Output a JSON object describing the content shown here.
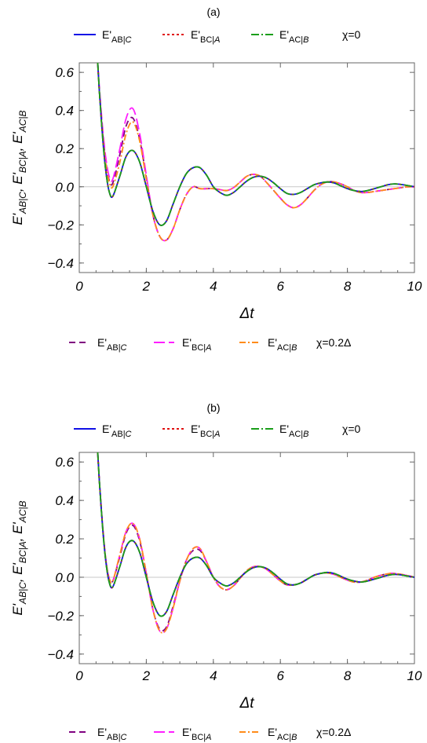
{
  "chart_data": [
    {
      "type": "line",
      "title": "(a)",
      "xlabel": "Δt",
      "ylabel": "E'AB|C,  E'BC|A,  E'AC|B",
      "xlim": [
        0,
        10
      ],
      "ylim": [
        -0.45,
        0.65
      ],
      "xticks": [
        "0",
        "2",
        "4",
        "6",
        "8",
        "10"
      ],
      "yticks": [
        "0.6",
        "0.4",
        "0.2",
        "0.0",
        "−0.2",
        "−0.4"
      ],
      "ytick_values": [
        0.6,
        0.4,
        0.2,
        0.0,
        -0.2,
        -0.4
      ],
      "grid": false,
      "zero_line": true,
      "legend_top": {
        "label_a": "E'AB|C",
        "label_b": "E'BC|A",
        "label_c": "E'AC|B",
        "suffix": "χ=0"
      },
      "legend_bottom": {
        "label_a": "E'AB|C",
        "label_b": "E'BC|A",
        "label_c": "E'AC|B",
        "suffix": "χ=0.2Δ"
      },
      "x": [
        0.55,
        0.6,
        0.7,
        0.8,
        0.9,
        1.0,
        1.2,
        1.4,
        1.6,
        1.8,
        2.0,
        2.2,
        2.4,
        2.6,
        2.8,
        3.0,
        3.2,
        3.4,
        3.6,
        3.8,
        4.0,
        4.2,
        4.4,
        4.6,
        4.8,
        5.0,
        5.2,
        5.4,
        5.6,
        5.8,
        6.0,
        6.2,
        6.4,
        6.6,
        6.8,
        7.0,
        7.2,
        7.4,
        7.6,
        7.8,
        8.0,
        8.2,
        8.4,
        8.6,
        8.8,
        9.0,
        9.2,
        9.4,
        9.6,
        9.8,
        10.0
      ],
      "series": [
        {
          "name": "E'AB|C χ=0",
          "color": "#1010e6",
          "dash": "solid",
          "values": [
            0.65,
            0.5,
            0.25,
            0.07,
            -0.03,
            -0.05,
            0.05,
            0.16,
            0.19,
            0.13,
            0.0,
            -0.13,
            -0.2,
            -0.18,
            -0.09,
            0.0,
            0.07,
            0.1,
            0.1,
            0.06,
            0.0,
            -0.03,
            -0.045,
            -0.03,
            0.0,
            0.03,
            0.05,
            0.055,
            0.045,
            0.02,
            -0.01,
            -0.035,
            -0.04,
            -0.03,
            -0.01,
            0.01,
            0.02,
            0.025,
            0.02,
            0.005,
            -0.01,
            -0.02,
            -0.025,
            -0.02,
            -0.01,
            0.0,
            0.01,
            0.015,
            0.012,
            0.006,
            0.0
          ]
        },
        {
          "name": "E'BC|A χ=0",
          "color": "#e01010",
          "dash": "3,3",
          "values": [
            0.65,
            0.5,
            0.25,
            0.07,
            -0.03,
            -0.05,
            0.05,
            0.16,
            0.19,
            0.13,
            0.0,
            -0.13,
            -0.2,
            -0.18,
            -0.09,
            0.0,
            0.07,
            0.1,
            0.1,
            0.06,
            0.0,
            -0.03,
            -0.045,
            -0.03,
            0.0,
            0.03,
            0.05,
            0.055,
            0.045,
            0.02,
            -0.01,
            -0.035,
            -0.04,
            -0.03,
            -0.01,
            0.01,
            0.02,
            0.025,
            0.02,
            0.005,
            -0.01,
            -0.02,
            -0.025,
            -0.02,
            -0.01,
            0.0,
            0.01,
            0.015,
            0.012,
            0.006,
            0.0
          ]
        },
        {
          "name": "E'AC|B χ=0",
          "color": "#1a9e1a",
          "dash": "10,3,2,3",
          "values": [
            0.65,
            0.5,
            0.25,
            0.07,
            -0.03,
            -0.05,
            0.05,
            0.16,
            0.19,
            0.13,
            0.0,
            -0.13,
            -0.2,
            -0.18,
            -0.09,
            0.0,
            0.07,
            0.1,
            0.1,
            0.06,
            0.0,
            -0.03,
            -0.045,
            -0.03,
            0.0,
            0.03,
            0.05,
            0.055,
            0.045,
            0.02,
            -0.01,
            -0.035,
            -0.04,
            -0.03,
            -0.01,
            0.01,
            0.02,
            0.025,
            0.02,
            0.005,
            -0.01,
            -0.02,
            -0.025,
            -0.02,
            -0.01,
            0.0,
            0.01,
            0.015,
            0.012,
            0.006,
            0.0
          ]
        },
        {
          "name": "E'AB|C χ=0.2Δ",
          "color": "#800080",
          "dash": "8,5",
          "values": [
            0.65,
            0.5,
            0.28,
            0.12,
            0.03,
            0.02,
            0.16,
            0.32,
            0.36,
            0.25,
            0.05,
            -0.15,
            -0.26,
            -0.28,
            -0.22,
            -0.12,
            -0.04,
            0.0,
            -0.01,
            -0.01,
            -0.01,
            -0.015,
            -0.02,
            -0.005,
            0.025,
            0.055,
            0.065,
            0.055,
            0.02,
            -0.02,
            -0.06,
            -0.095,
            -0.11,
            -0.095,
            -0.06,
            -0.02,
            0.01,
            0.025,
            0.025,
            0.015,
            0.0,
            -0.02,
            -0.03,
            -0.03,
            -0.025,
            -0.02,
            -0.015,
            -0.01,
            -0.005,
            0.0,
            0.0
          ]
        },
        {
          "name": "E'BC|A χ=0.2Δ",
          "color": "#ff1eff",
          "dash": "14,5",
          "values": [
            0.65,
            0.52,
            0.3,
            0.14,
            0.05,
            0.04,
            0.19,
            0.36,
            0.41,
            0.28,
            0.06,
            -0.15,
            -0.26,
            -0.28,
            -0.22,
            -0.12,
            -0.04,
            0.0,
            -0.01,
            -0.01,
            -0.01,
            -0.015,
            -0.02,
            -0.005,
            0.025,
            0.055,
            0.065,
            0.055,
            0.02,
            -0.02,
            -0.06,
            -0.095,
            -0.11,
            -0.095,
            -0.06,
            -0.02,
            0.01,
            0.025,
            0.025,
            0.015,
            0.0,
            -0.02,
            -0.03,
            -0.03,
            -0.025,
            -0.02,
            -0.015,
            -0.01,
            -0.005,
            0.0,
            0.0
          ]
        },
        {
          "name": "E'AC|B χ=0.2Δ",
          "color": "#ff8c1a",
          "dash": "8,3,2,3",
          "values": [
            0.65,
            0.5,
            0.27,
            0.11,
            0.02,
            0.0,
            0.12,
            0.28,
            0.34,
            0.24,
            0.04,
            -0.15,
            -0.26,
            -0.28,
            -0.22,
            -0.12,
            -0.04,
            0.0,
            -0.01,
            -0.01,
            -0.01,
            -0.015,
            -0.02,
            -0.005,
            0.025,
            0.055,
            0.065,
            0.055,
            0.02,
            -0.02,
            -0.06,
            -0.095,
            -0.11,
            -0.095,
            -0.06,
            -0.02,
            0.01,
            0.025,
            0.025,
            0.015,
            0.0,
            -0.02,
            -0.03,
            -0.03,
            -0.025,
            -0.02,
            -0.015,
            -0.01,
            -0.005,
            0.0,
            0.0
          ]
        }
      ]
    },
    {
      "type": "line",
      "title": "(b)",
      "xlabel": "Δt",
      "ylabel": "E'AB|C,  E'BC|A,  E'AC|B",
      "xlim": [
        0,
        10
      ],
      "ylim": [
        -0.45,
        0.65
      ],
      "xticks": [
        "0",
        "2",
        "4",
        "6",
        "8",
        "10"
      ],
      "yticks": [
        "0.6",
        "0.4",
        "0.2",
        "0.0",
        "−0.2",
        "−0.4"
      ],
      "ytick_values": [
        0.6,
        0.4,
        0.2,
        0.0,
        -0.2,
        -0.4
      ],
      "grid": false,
      "zero_line": true,
      "legend_top": {
        "label_a": "E'AB|C",
        "label_b": "E'BC|A",
        "label_c": "E'AC|B",
        "suffix": "χ=0"
      },
      "legend_bottom": {
        "label_a": "E'AB|C",
        "label_b": "E'BC|A",
        "label_c": "E'AC|B",
        "suffix": "χ=0.2Δ"
      },
      "x": [
        0.55,
        0.6,
        0.7,
        0.8,
        0.9,
        1.0,
        1.2,
        1.4,
        1.6,
        1.8,
        2.0,
        2.2,
        2.4,
        2.6,
        2.8,
        3.0,
        3.2,
        3.4,
        3.6,
        3.8,
        4.0,
        4.2,
        4.4,
        4.6,
        4.8,
        5.0,
        5.2,
        5.4,
        5.6,
        5.8,
        6.0,
        6.2,
        6.4,
        6.6,
        6.8,
        7.0,
        7.2,
        7.4,
        7.6,
        7.8,
        8.0,
        8.2,
        8.4,
        8.6,
        8.8,
        9.0,
        9.2,
        9.4,
        9.6,
        9.8,
        10.0
      ],
      "series": [
        {
          "name": "E'AB|C χ=0",
          "color": "#1010e6",
          "dash": "solid",
          "values": [
            0.65,
            0.5,
            0.25,
            0.07,
            -0.03,
            -0.05,
            0.05,
            0.16,
            0.19,
            0.13,
            0.0,
            -0.13,
            -0.2,
            -0.18,
            -0.09,
            0.0,
            0.07,
            0.1,
            0.1,
            0.06,
            0.0,
            -0.03,
            -0.045,
            -0.03,
            0.0,
            0.03,
            0.05,
            0.055,
            0.045,
            0.02,
            -0.01,
            -0.035,
            -0.04,
            -0.03,
            -0.01,
            0.01,
            0.02,
            0.025,
            0.02,
            0.005,
            -0.01,
            -0.02,
            -0.025,
            -0.02,
            -0.01,
            0.0,
            0.01,
            0.015,
            0.012,
            0.006,
            0.0
          ]
        },
        {
          "name": "E'BC|A χ=0",
          "color": "#e01010",
          "dash": "3,3",
          "values": [
            0.65,
            0.5,
            0.25,
            0.07,
            -0.03,
            -0.05,
            0.05,
            0.16,
            0.19,
            0.13,
            0.0,
            -0.13,
            -0.2,
            -0.18,
            -0.09,
            0.0,
            0.07,
            0.1,
            0.1,
            0.06,
            0.0,
            -0.03,
            -0.045,
            -0.03,
            0.0,
            0.03,
            0.05,
            0.055,
            0.045,
            0.02,
            -0.01,
            -0.035,
            -0.04,
            -0.03,
            -0.01,
            0.01,
            0.02,
            0.025,
            0.02,
            0.005,
            -0.01,
            -0.02,
            -0.025,
            -0.02,
            -0.01,
            0.0,
            0.01,
            0.015,
            0.012,
            0.006,
            0.0
          ]
        },
        {
          "name": "E'AC|B χ=0",
          "color": "#1a9e1a",
          "dash": "10,3,2,3",
          "values": [
            0.65,
            0.5,
            0.25,
            0.07,
            -0.03,
            -0.05,
            0.05,
            0.16,
            0.19,
            0.13,
            0.0,
            -0.13,
            -0.2,
            -0.18,
            -0.09,
            0.0,
            0.07,
            0.1,
            0.1,
            0.06,
            0.0,
            -0.03,
            -0.045,
            -0.03,
            0.0,
            0.03,
            0.05,
            0.055,
            0.045,
            0.02,
            -0.01,
            -0.035,
            -0.04,
            -0.03,
            -0.01,
            0.01,
            0.02,
            0.025,
            0.02,
            0.005,
            -0.01,
            -0.02,
            -0.025,
            -0.02,
            -0.01,
            0.0,
            0.01,
            0.015,
            0.012,
            0.006,
            0.0
          ]
        },
        {
          "name": "E'AB|C χ=0.2Δ",
          "color": "#800080",
          "dash": "8,5",
          "values": [
            0.65,
            0.5,
            0.26,
            0.08,
            -0.01,
            -0.02,
            0.1,
            0.23,
            0.27,
            0.19,
            0.02,
            -0.17,
            -0.27,
            -0.26,
            -0.15,
            -0.02,
            0.09,
            0.14,
            0.14,
            0.08,
            0.0,
            -0.05,
            -0.065,
            -0.045,
            -0.005,
            0.035,
            0.055,
            0.055,
            0.04,
            0.01,
            -0.02,
            -0.04,
            -0.04,
            -0.03,
            -0.01,
            0.01,
            0.02,
            0.022,
            0.015,
            0.0,
            -0.015,
            -0.025,
            -0.025,
            -0.015,
            0.0,
            0.01,
            0.018,
            0.02,
            0.015,
            0.008,
            0.0
          ]
        },
        {
          "name": "E'BC|A χ=0.2Δ",
          "color": "#ff1eff",
          "dash": "14,5",
          "values": [
            0.65,
            0.5,
            0.26,
            0.08,
            -0.01,
            -0.02,
            0.11,
            0.24,
            0.28,
            0.2,
            0.02,
            -0.17,
            -0.28,
            -0.27,
            -0.16,
            -0.02,
            0.09,
            0.15,
            0.15,
            0.08,
            0.0,
            -0.05,
            -0.065,
            -0.045,
            -0.005,
            0.035,
            0.055,
            0.055,
            0.04,
            0.01,
            -0.02,
            -0.04,
            -0.04,
            -0.03,
            -0.01,
            0.01,
            0.02,
            0.022,
            0.015,
            0.0,
            -0.015,
            -0.025,
            -0.025,
            -0.015,
            0.0,
            0.01,
            0.018,
            0.02,
            0.015,
            0.008,
            0.0
          ]
        },
        {
          "name": "E'AC|B χ=0.2Δ",
          "color": "#ff8c1a",
          "dash": "8,3,2,3",
          "values": [
            0.65,
            0.5,
            0.26,
            0.08,
            -0.01,
            -0.02,
            0.11,
            0.24,
            0.28,
            0.2,
            0.02,
            -0.17,
            -0.28,
            -0.27,
            -0.16,
            -0.02,
            0.09,
            0.15,
            0.15,
            0.08,
            0.0,
            -0.05,
            -0.065,
            -0.045,
            -0.005,
            0.035,
            0.055,
            0.055,
            0.04,
            0.01,
            -0.02,
            -0.04,
            -0.04,
            -0.03,
            -0.01,
            0.01,
            0.02,
            0.022,
            0.015,
            0.0,
            -0.015,
            -0.025,
            -0.025,
            -0.015,
            0.0,
            0.01,
            0.018,
            0.02,
            0.015,
            0.008,
            0.0
          ]
        }
      ]
    }
  ]
}
